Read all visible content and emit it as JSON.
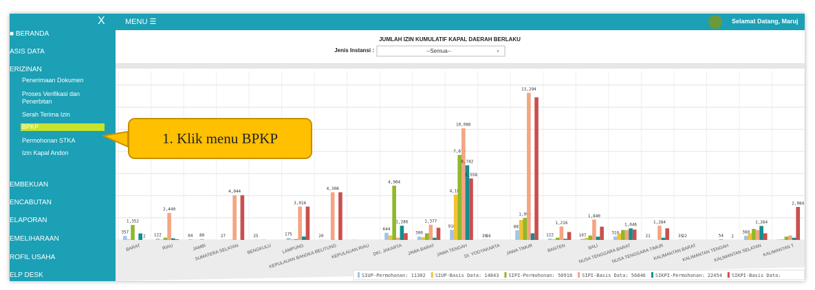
{
  "header": {
    "close": "X",
    "menu": "MENU ☰",
    "welcome": "Selamat Datang, Maruj"
  },
  "sidebar": {
    "items": [
      "■ BERANDA",
      "ASIS DATA",
      "ERIZINAN",
      "EMBEKUAN",
      "ENCABUTAN",
      "ELAPORAN",
      "EMELIHARAAN",
      "ROFIL USAHA",
      "ELP DESK"
    ],
    "subitems": [
      "Penerimaan Dokumen",
      "Proses Verifikasi dan Penerbitan",
      "Serah Terima Izin",
      "BPKP",
      "Permohonan STKA",
      "Izin Kapal Andon"
    ]
  },
  "callout": "1. Klik menu BPKP",
  "filter": {
    "label": "Jenis Instansi :",
    "selected": "--Semua--"
  },
  "chart_data": {
    "type": "bar",
    "title": "JUMLAH IZIN KUMULATIF KAPAL DAERAH BERLAKU",
    "categories": [
      "BARAT",
      "RIAU",
      "JAMBI",
      "SUMATERA SELATAN",
      "BENGKULU",
      "LAMPUNG",
      "KEPULAUAN BANGKA BELITUNG",
      "KEPULAUAN RIAU",
      "DKI. JAKARTA",
      "JAWA BARAT",
      "JAWA TENGAH",
      "DI. YOGYAKARTA",
      "JAWA TIMUR",
      "BANTEN",
      "BALI",
      "NUSA TENGGARA BARAT",
      "NUSA TENGGARA TIMUR",
      "KALIMANTAN BARAT",
      "KALIMANTAN TENGAH",
      "KALIMANTAN SELATAN",
      "KALIMANTAN T"
    ],
    "ylim": [
      0,
      14000
    ],
    "yticks": [
      0,
      2000,
      4000,
      6000,
      8000,
      10000,
      12000,
      14000
    ],
    "grid": true,
    "series": [
      {
        "name": "SIUP-Permohonan: 11302",
        "color": "#9fc5e8",
        "values": [
          357,
          122,
          64,
          27,
          25,
          175,
          20,
          25,
          644,
          300,
          910,
          30,
          882,
          122,
          107,
          310,
          21,
          35,
          0,
          380,
          40
        ],
        "value_labels": [
          "357",
          "122",
          "64",
          "27",
          "25",
          "175",
          "20",
          null,
          "644",
          "300",
          "910",
          "30",
          "882",
          "122",
          "107",
          "310",
          "21",
          "35",
          null,
          "380",
          null
        ]
      },
      {
        "name": "SIUP-Basis Data: 14843",
        "color": "#f1c232",
        "values": [
          60,
          40,
          20,
          10,
          10,
          60,
          10,
          10,
          400,
          250,
          4103,
          16,
          1800,
          60,
          200,
          600,
          10,
          22,
          0,
          600,
          60
        ],
        "value_labels": [
          null,
          null,
          null,
          null,
          null,
          null,
          null,
          null,
          null,
          null,
          "4,103",
          "16",
          null,
          null,
          null,
          null,
          null,
          "22",
          null,
          null,
          null
        ]
      },
      {
        "name": "SIPI-Permohonan: 50916",
        "color": "#8fb82a",
        "values": [
          1352,
          210,
          10,
          22,
          22,
          80,
          0,
          0,
          4904,
          600,
          7679,
          0,
          1990,
          200,
          400,
          900,
          0,
          0,
          54,
          1000,
          300
        ],
        "value_labels": [
          "1,352",
          null,
          null,
          null,
          null,
          null,
          null,
          null,
          "4,904",
          null,
          "7,679",
          null,
          "1,990",
          null,
          null,
          null,
          null,
          null,
          "54",
          null,
          null
        ]
      },
      {
        "name": "SIPI-Basis Data: 56846",
        "color": "#f4a582",
        "values": [
          0,
          2440,
          80,
          4044,
          0,
          3016,
          4308,
          2,
          200,
          1377,
          10086,
          0,
          13294,
          1216,
          1840,
          900,
          1284,
          0,
          0,
          900,
          400
        ],
        "value_labels": [
          null,
          "2,440",
          "80",
          "4,044",
          null,
          "3,016",
          "4,308",
          null,
          null,
          "1,377",
          "10,086",
          null,
          "13,294",
          "1,216",
          "1,840",
          null,
          "1,284",
          null,
          null,
          null,
          null
        ]
      },
      {
        "name": "SIKPI-Permohonan: 22454",
        "color": "#138d90",
        "values": [
          589,
          150,
          0,
          0,
          0,
          310,
          0,
          0,
          1286,
          200,
          6742,
          0,
          600,
          100,
          300,
          1046,
          200,
          0,
          0,
          1264,
          200
        ],
        "value_labels": [
          null,
          null,
          null,
          null,
          null,
          null,
          null,
          null,
          "1,286",
          null,
          "6,742",
          null,
          null,
          null,
          null,
          "1,046",
          null,
          null,
          null,
          "1,264",
          null
        ]
      },
      {
        "name": "SIKPI-Basis Data:",
        "color": "#c9504f",
        "values": [
          2,
          60,
          0,
          4044,
          0,
          3016,
          4308,
          0,
          610,
          1100,
          5558,
          0,
          12890,
          716,
          1200,
          940,
          1050,
          0,
          2,
          600,
          2984
        ],
        "value_labels": [
          "2",
          null,
          null,
          null,
          null,
          null,
          null,
          null,
          null,
          null,
          "5,558",
          null,
          null,
          null,
          null,
          null,
          null,
          null,
          "2",
          null,
          "2,984"
        ]
      }
    ]
  }
}
